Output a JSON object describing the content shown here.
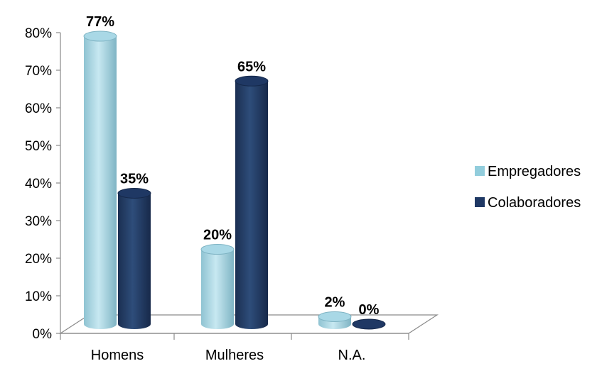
{
  "chart_data": {
    "type": "bar",
    "categories": [
      "Homens",
      "Mulheres",
      "N.A."
    ],
    "series": [
      {
        "name": "Empregadores",
        "values": [
          77,
          20,
          2
        ],
        "labels": [
          "77%",
          "20%",
          "2%"
        ]
      },
      {
        "name": "Colaboradores",
        "values": [
          35,
          65,
          0
        ],
        "labels": [
          "35%",
          "65%",
          "0%"
        ]
      }
    ],
    "y_tick_labels": [
      "0%",
      "10%",
      "20%",
      "30%",
      "40%",
      "50%",
      "60%",
      "70%",
      "80%"
    ],
    "ylim": [
      0,
      80
    ],
    "grid": false,
    "legend_position": "right",
    "colors": {
      "Empregadores": "#92cddc",
      "Colaboradores": "#1f3864"
    }
  }
}
